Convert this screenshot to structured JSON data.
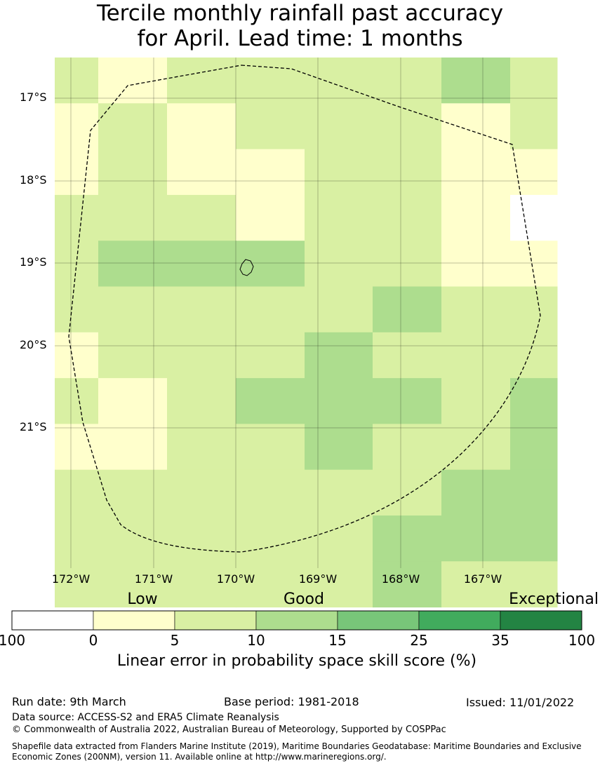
{
  "title_line1": "Tercile monthly rainfall past accuracy",
  "title_line2": "for April. Lead time: 1 months",
  "lat_labels": [
    "17°S",
    "18°S",
    "19°S",
    "20°S",
    "21°S"
  ],
  "lon_labels": [
    "172°W",
    "171°W",
    "170°W",
    "169°W",
    "168°W",
    "167°W"
  ],
  "legend": {
    "categories": [
      "Low",
      "Good",
      "Exceptional"
    ],
    "ticks": [
      "100",
      "0",
      "5",
      "10",
      "15",
      "25",
      "35",
      "100"
    ],
    "colors": [
      "#ffffff",
      "#ffffcc",
      "#d9f0a3",
      "#addd8e",
      "#78c679",
      "#41ab5d",
      "#238443"
    ],
    "title": "Linear error in probability space skill score (%)"
  },
  "grid": {
    "color_keys": {
      "L": "#ffffcc",
      "G": "#d9f0a3",
      "M": "#addd8e",
      "W": "#ffffff"
    },
    "rows": [
      "GLGGGGMG",
      "LGLGGGLG",
      "LGLLGGLL",
      "GGGLGGLW",
      "GMMMGGLL",
      "GGGGGMGG",
      "LGGGMGGG",
      "GLGMMMGM",
      "LLGGMGGM",
      "GGGGGGMM",
      "GGGGGMMM",
      "GGGGGMGG"
    ]
  },
  "footer": {
    "run_date": "Run date: 9th March",
    "base_period": "Base period: 1981-2018",
    "issued": "Issued: 11/01/2022",
    "data_source": "Data source: ACCESS-S2 and ERA5 Climate Reanalysis",
    "copyright": "© Commonwealth of Australia 2022, Australian Bureau of Meteorology, Supported by COSPPac",
    "shapefile": "Shapefile data extracted from Flanders Marine Institute (2019), Maritime Boundaries Geodatabase: Maritime Boundaries and Exclusive Economic Zones (200NM), version 11. Available online at http://www.marineregions.org/."
  }
}
